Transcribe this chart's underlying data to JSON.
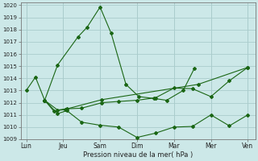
{
  "xlabel": "Pression niveau de la mer( hPa )",
  "ylim": [
    1009,
    1020
  ],
  "yticks": [
    1009,
    1010,
    1011,
    1012,
    1013,
    1014,
    1015,
    1016,
    1017,
    1018,
    1019,
    1020
  ],
  "xtick_labels": [
    "Lun",
    "Jeu",
    "Sam",
    "Dim",
    "Mar",
    "Mer",
    "Ven"
  ],
  "xtick_positions": [
    0,
    1,
    2,
    3,
    4,
    5,
    6
  ],
  "background_color": "#cce8e8",
  "grid_color": "#aacccc",
  "line_color": "#1a6614",
  "line1_x": [
    0.0,
    0.25,
    0.5,
    0.85,
    1.4,
    1.65,
    2.0,
    2.3,
    2.7,
    3.05,
    3.45,
    3.8,
    4.25,
    4.55
  ],
  "line1_y": [
    1013.0,
    1014.1,
    1012.2,
    1015.1,
    1017.4,
    1018.2,
    1019.85,
    1017.7,
    1013.5,
    1012.5,
    1012.35,
    1012.2,
    1013.0,
    1014.8
  ],
  "line2_x": [
    0.5,
    0.75,
    1.05,
    2.05,
    4.65,
    6.0
  ],
  "line2_y": [
    1012.2,
    1011.3,
    1011.45,
    1012.25,
    1013.5,
    1014.9
  ],
  "line3_x": [
    0.5,
    0.85,
    1.1,
    1.5,
    2.0,
    2.5,
    3.0,
    3.5,
    4.0,
    4.5,
    5.0,
    5.5,
    6.0
  ],
  "line3_y": [
    1012.2,
    1011.1,
    1011.35,
    1010.4,
    1010.15,
    1010.0,
    1009.15,
    1009.5,
    1010.0,
    1010.05,
    1011.0,
    1010.1,
    1011.0
  ],
  "line4_x": [
    0.5,
    0.85,
    1.1,
    1.5,
    2.05,
    2.5,
    3.0,
    3.5,
    4.0,
    4.5,
    5.0,
    5.5,
    6.0
  ],
  "line4_y": [
    1012.2,
    1011.4,
    1011.5,
    1011.55,
    1012.0,
    1012.1,
    1012.2,
    1012.4,
    1013.2,
    1013.15,
    1012.5,
    1013.8,
    1014.9
  ]
}
